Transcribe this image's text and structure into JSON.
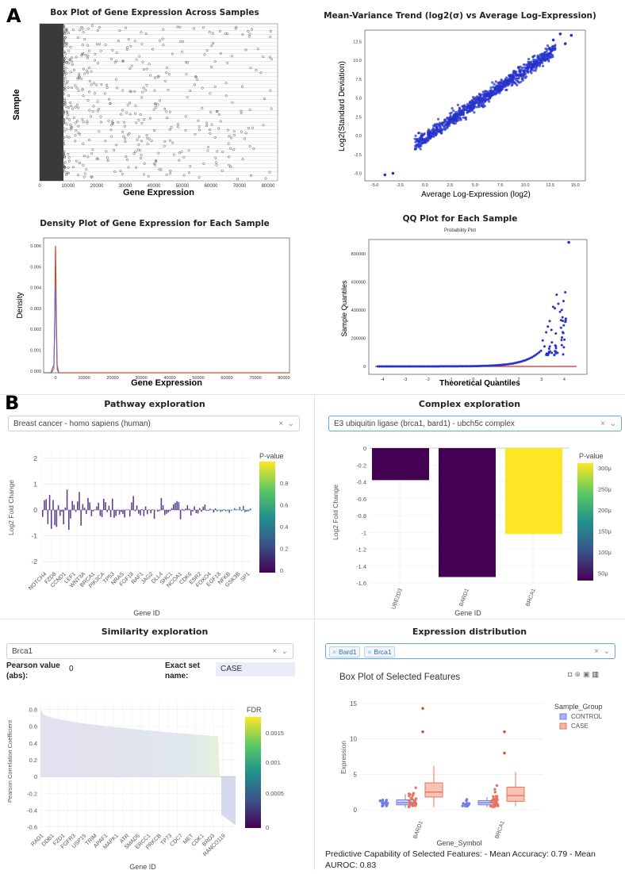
{
  "panel_labels": {
    "a": "A",
    "b": "B"
  },
  "fig_box": {
    "title": "Box Plot of Gene Expression Across Samples",
    "xlabel": "Gene Expression",
    "ylabel": "Sample",
    "ticks": [
      "0",
      "10000",
      "20000",
      "30000",
      "40000",
      "50000",
      "60000",
      "70000",
      "80000"
    ]
  },
  "fig_mv": {
    "title": "Mean-Variance Trend (log2(σ) vs Average Log-Expression)",
    "xlabel": "Average Log-Expression (log2)",
    "ylabel": "Log2(Standard Deviation)",
    "xticks": [
      "-5.0",
      "-2.5",
      "0.0",
      "2.5",
      "5.0",
      "7.5",
      "10.0",
      "12.5",
      "15.0"
    ],
    "yticks": [
      "12.5",
      "10.0",
      "7.5",
      "5.0",
      "2.5",
      "0.0",
      "-2.5",
      "-5.0"
    ]
  },
  "fig_density": {
    "title": "Density Plot of Gene Expression for Each Sample",
    "xlabel": "Gene Expression",
    "ylabel": "Density",
    "xticks": [
      "0",
      "10000",
      "20000",
      "30000",
      "40000",
      "50000",
      "60000",
      "70000",
      "80000"
    ],
    "yticks": [
      "0.006",
      "0.005",
      "0.004",
      "0.003",
      "0.002",
      "0.001",
      "0.000"
    ]
  },
  "fig_qq": {
    "title": "QQ Plot for Each Sample",
    "subtitle": "Probability Plot",
    "xlabel": "Theoretical Quantiles",
    "ylabel": "Sample Quantiles",
    "xticks": [
      "-4",
      "-3",
      "-2",
      "-1",
      "0",
      "1",
      "2",
      "3",
      "4"
    ],
    "yticks": [
      "800000",
      "600000",
      "400000",
      "200000",
      "0"
    ]
  },
  "pathway": {
    "title": "Pathway exploration",
    "dropdown": "Breast cancer - homo sapiens (human)",
    "ylabel": "Log2 Fold Change",
    "xlabel": "Gene ID",
    "yticks": [
      "2",
      "1",
      "0",
      "-1",
      "-2"
    ],
    "colorbar_title": "P-value",
    "colorbar_ticks": [
      "0.8",
      "0.6",
      "0.4",
      "0.2",
      "0"
    ],
    "gene_labels": [
      "NOTCH4",
      "FZD8",
      "CCND1",
      "LEF1",
      "WNT3A",
      "BRCA1",
      "PIK3CA",
      "TP53",
      "NRAS",
      "FGF18",
      "RAF1",
      "JAG2",
      "DLL4",
      "SHC1",
      "NCOA1",
      "CDK6",
      "ESR2",
      "FOXO4",
      "EGF18",
      "NFKB",
      "GSK3B",
      "SP1"
    ]
  },
  "complex": {
    "title": "Complex exploration",
    "dropdown": "E3 ubiquitin ligase (brca1, bard1) - ubch5c complex",
    "ylabel": "Log2 Fold Change",
    "xlabel": "Gene ID",
    "yticks": [
      "0",
      "-0.2",
      "-0.4",
      "-0.6",
      "-0.8",
      "-1",
      "-1.2",
      "-1.4",
      "-1.6"
    ],
    "colorbar_title": "P-value",
    "colorbar_ticks": [
      "300μ",
      "250μ",
      "200μ",
      "150μ",
      "100μ",
      "50μ"
    ]
  },
  "similarity": {
    "title": "Similarity exploration",
    "dropdown": "Brca1",
    "pearson_label": "Pearson value (abs):",
    "pearson_value": "0",
    "exact_label": "Exact set name:",
    "exact_value": "CASE",
    "ylabel": "Pearson Correlation Coefficient",
    "xlabel": "Gene ID",
    "yticks": [
      "0.8",
      "0.6",
      "0.4",
      "0.2",
      "0",
      "-0.2",
      "-0.4",
      "-0.6"
    ],
    "colorbar_title": "FDR",
    "colorbar_ticks": [
      "0.0015",
      "0.001",
      "0.0005",
      "0"
    ],
    "gene_labels": [
      "RAD1",
      "DDB1",
      "FZD1",
      "FGFR3",
      "USP15",
      "TRIM",
      "APAF1",
      "MAPK1",
      "ATR",
      "SMAD5",
      "ERCC1",
      "PRKCB",
      "TP73",
      "CDC7",
      "MET",
      "CDK1",
      "BRD3",
      "RANCO119"
    ]
  },
  "expression": {
    "title": "Expression distribution",
    "chips": [
      "Bard1",
      "Brca1"
    ],
    "plot_title": "Box Plot of Selected Features",
    "ylabel": "Expression",
    "xlabel": "Gene_Symbol",
    "yticks": [
      "15",
      "10",
      "5",
      "0"
    ],
    "legend_title": "Sample_Group",
    "legend_items": [
      "CONTROL",
      "CASE"
    ],
    "footer": "Predictive Capability of Selected Features: - Mean Accuracy: 0.79 - Mean AUROC: 0.83"
  },
  "chart_data": [
    {
      "type": "bar",
      "title": "Complex exploration",
      "categories": [
        "UBE2D3",
        "BARD1",
        "BRCA1"
      ],
      "values": [
        -0.38,
        -1.53,
        -1.02
      ],
      "pvalues_micro": [
        5,
        10,
        320
      ],
      "ylabel": "Log2 Fold Change",
      "xlabel": "Gene ID",
      "ylim": [
        -1.6,
        0
      ]
    },
    {
      "type": "box",
      "title": "Box Plot of Selected Features",
      "categories": [
        "BARD1",
        "BRCA1"
      ],
      "series": [
        {
          "name": "CONTROL",
          "color": "#6f7ee6",
          "q1": [
            0.7,
            0.7
          ],
          "median": [
            1.0,
            1.0
          ],
          "q3": [
            1.4,
            1.3
          ],
          "min": [
            0.3,
            0.4
          ],
          "max": [
            2.2,
            1.8
          ]
        },
        {
          "name": "CASE",
          "color": "#e8735a",
          "q1": [
            1.8,
            1.2
          ],
          "median": [
            2.5,
            2.0
          ],
          "q3": [
            3.8,
            3.2
          ],
          "min": [
            0.4,
            0.5
          ],
          "max": [
            6.2,
            5.3
          ]
        }
      ],
      "ylabel": "Expression",
      "xlabel": "Gene_Symbol",
      "ylim": [
        -1,
        16
      ]
    }
  ],
  "colors": {
    "navy": "#1d1f9e",
    "purple": "#5b3c8c",
    "yellow": "#fde725",
    "dark": "#440154",
    "orange_red": "#d64a2b",
    "blue_pt": "#2633c9"
  }
}
